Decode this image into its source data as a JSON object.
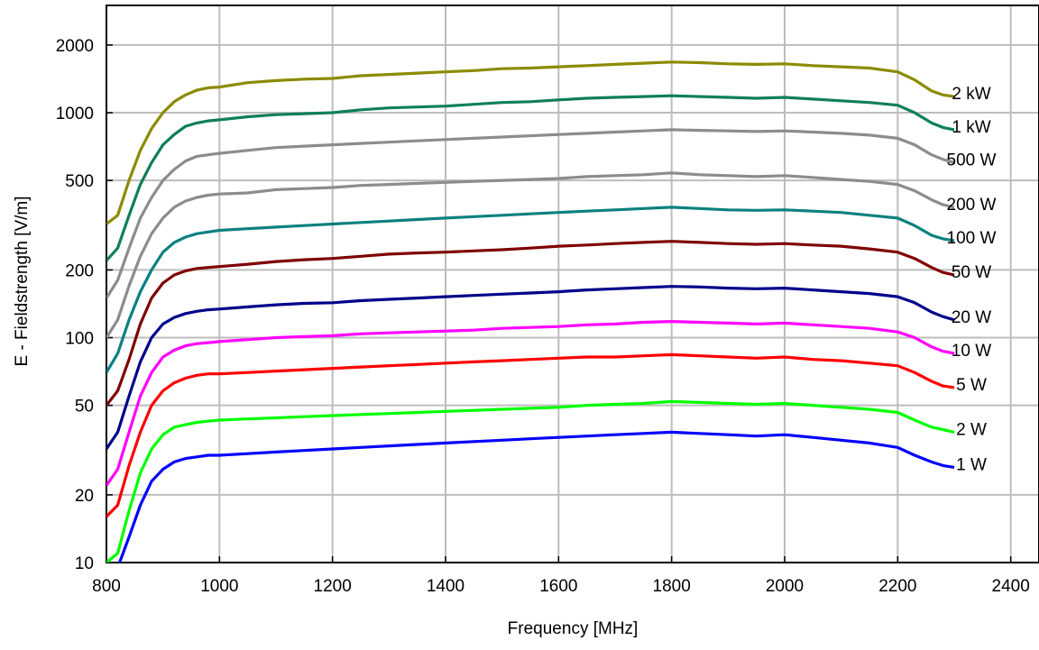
{
  "chart_data": {
    "type": "line",
    "xlabel": "Frequency [MHz]",
    "ylabel": "E - Fieldstrength [V/m]",
    "xlim": [
      800,
      2450
    ],
    "ylim": [
      10,
      3000
    ],
    "y_scale": "log",
    "grid": true,
    "x_ticks": [
      800,
      1000,
      1200,
      1400,
      1600,
      1800,
      2000,
      2200,
      2400
    ],
    "y_ticks": [
      10,
      20,
      50,
      100,
      200,
      500,
      1000,
      2000
    ],
    "x": [
      800,
      820,
      840,
      860,
      880,
      900,
      920,
      940,
      960,
      980,
      1000,
      1050,
      1100,
      1150,
      1200,
      1250,
      1300,
      1350,
      1400,
      1450,
      1500,
      1550,
      1600,
      1650,
      1700,
      1750,
      1800,
      1850,
      1900,
      1950,
      2000,
      2050,
      2100,
      2150,
      2200,
      2230,
      2260,
      2280,
      2300
    ],
    "series": [
      {
        "name": "2 kW",
        "color": "#8b8b00",
        "values": [
          320,
          350,
          500,
          680,
          850,
          1000,
          1120,
          1200,
          1260,
          1290,
          1300,
          1360,
          1390,
          1410,
          1420,
          1460,
          1480,
          1500,
          1520,
          1540,
          1570,
          1580,
          1600,
          1620,
          1640,
          1660,
          1680,
          1670,
          1650,
          1640,
          1650,
          1620,
          1600,
          1580,
          1520,
          1400,
          1250,
          1200,
          1180
        ]
      },
      {
        "name": "1 kW",
        "color": "#0f7f58",
        "values": [
          220,
          250,
          350,
          480,
          600,
          720,
          800,
          870,
          900,
          920,
          930,
          960,
          980,
          990,
          1000,
          1030,
          1050,
          1060,
          1070,
          1090,
          1110,
          1120,
          1140,
          1160,
          1170,
          1180,
          1190,
          1180,
          1170,
          1160,
          1170,
          1150,
          1130,
          1110,
          1080,
          1000,
          900,
          860,
          840
        ]
      },
      {
        "name": "500 W",
        "color": "#8c8c8c",
        "values": [
          150,
          180,
          250,
          340,
          420,
          500,
          560,
          610,
          640,
          650,
          660,
          680,
          700,
          710,
          720,
          730,
          740,
          750,
          760,
          770,
          780,
          790,
          800,
          810,
          820,
          830,
          840,
          835,
          830,
          825,
          830,
          820,
          810,
          795,
          770,
          720,
          650,
          620,
          600
        ]
      },
      {
        "name": "200 W",
        "color": "#8c8c8c",
        "values": [
          100,
          120,
          170,
          230,
          290,
          340,
          380,
          405,
          420,
          430,
          435,
          440,
          455,
          460,
          465,
          475,
          480,
          485,
          490,
          495,
          500,
          505,
          510,
          520,
          525,
          530,
          540,
          530,
          525,
          520,
          525,
          515,
          505,
          495,
          480,
          450,
          410,
          390,
          380
        ]
      },
      {
        "name": "100 W",
        "color": "#0b8080",
        "values": [
          70,
          85,
          120,
          160,
          200,
          240,
          265,
          280,
          290,
          295,
          300,
          305,
          310,
          315,
          320,
          325,
          330,
          335,
          340,
          345,
          350,
          355,
          360,
          365,
          370,
          375,
          380,
          375,
          370,
          368,
          370,
          365,
          360,
          350,
          340,
          315,
          285,
          275,
          270
        ]
      },
      {
        "name": "50 W",
        "color": "#800000",
        "values": [
          50,
          58,
          80,
          115,
          150,
          175,
          190,
          198,
          203,
          205,
          207,
          212,
          218,
          222,
          225,
          230,
          235,
          238,
          240,
          243,
          246,
          250,
          255,
          258,
          262,
          265,
          268,
          265,
          262,
          260,
          262,
          258,
          255,
          248,
          240,
          225,
          205,
          195,
          190
        ]
      },
      {
        "name": "20 W",
        "color": "#00008b",
        "values": [
          32,
          38,
          55,
          78,
          100,
          115,
          123,
          128,
          131,
          133,
          134,
          137,
          140,
          142,
          143,
          146,
          148,
          150,
          152,
          154,
          156,
          158,
          160,
          163,
          165,
          167,
          169,
          168,
          166,
          165,
          166,
          163,
          160,
          157,
          152,
          143,
          130,
          124,
          120
        ]
      },
      {
        "name": "10 W",
        "color": "#ff00ff",
        "values": [
          22,
          26,
          38,
          55,
          70,
          82,
          88,
          92,
          94,
          95,
          96,
          98,
          100,
          101,
          102,
          104,
          105,
          106,
          107,
          108,
          110,
          111,
          112,
          114,
          115,
          117,
          118,
          117,
          116,
          115,
          116,
          114,
          112,
          110,
          106,
          100,
          91,
          87,
          85
        ]
      },
      {
        "name": "5 W",
        "color": "#ff0000",
        "values": [
          16,
          18,
          27,
          38,
          50,
          58,
          63,
          66,
          68,
          69,
          69,
          70,
          71,
          72,
          73,
          74,
          75,
          76,
          77,
          78,
          79,
          80,
          81,
          82,
          82,
          83,
          84,
          83,
          82,
          81,
          82,
          80,
          79,
          77,
          75,
          70,
          64,
          61,
          60
        ]
      },
      {
        "name": "2 W",
        "color": "#00ff00",
        "values": [
          10,
          11,
          17,
          25,
          32,
          37,
          40,
          41,
          42,
          42.5,
          43,
          43.5,
          44,
          44.5,
          45,
          45.5,
          46,
          46.5,
          47,
          47.5,
          48,
          48.5,
          49,
          50,
          50.5,
          51,
          52,
          51.5,
          51,
          50.5,
          51,
          50,
          49,
          48,
          46.5,
          43,
          40,
          39,
          38
        ]
      },
      {
        "name": "1 W",
        "color": "#0000ff",
        "values": [
          8,
          9.5,
          13,
          18,
          23,
          26,
          28,
          29,
          29.5,
          30,
          30,
          30.5,
          31,
          31.5,
          32,
          32.5,
          33,
          33.5,
          34,
          34.5,
          35,
          35.5,
          36,
          36.5,
          37,
          37.5,
          38,
          37.5,
          37,
          36.5,
          37,
          36,
          35,
          34,
          32.5,
          30,
          28,
          27,
          26.5
        ]
      }
    ]
  }
}
